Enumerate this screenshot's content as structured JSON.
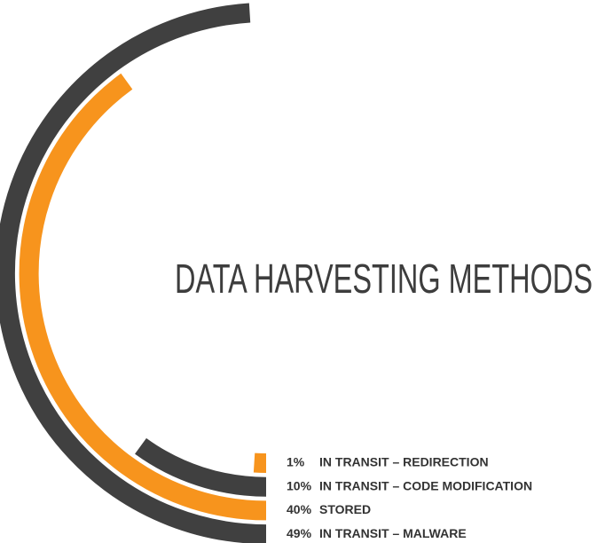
{
  "chart_data": {
    "type": "radial-bar",
    "title": "DATA HARVESTING METHODS",
    "categories": [
      "IN TRANSIT – REDIRECTION",
      "IN TRANSIT – CODE MODIFICATION",
      "STORED",
      "IN TRANSIT – MALWARE"
    ],
    "values": [
      1,
      10,
      40,
      49
    ],
    "value_labels": [
      "1%",
      "10%",
      "40%",
      "49%"
    ],
    "colors": [
      "#f7941d",
      "#404040",
      "#f7941d",
      "#404040"
    ]
  }
}
